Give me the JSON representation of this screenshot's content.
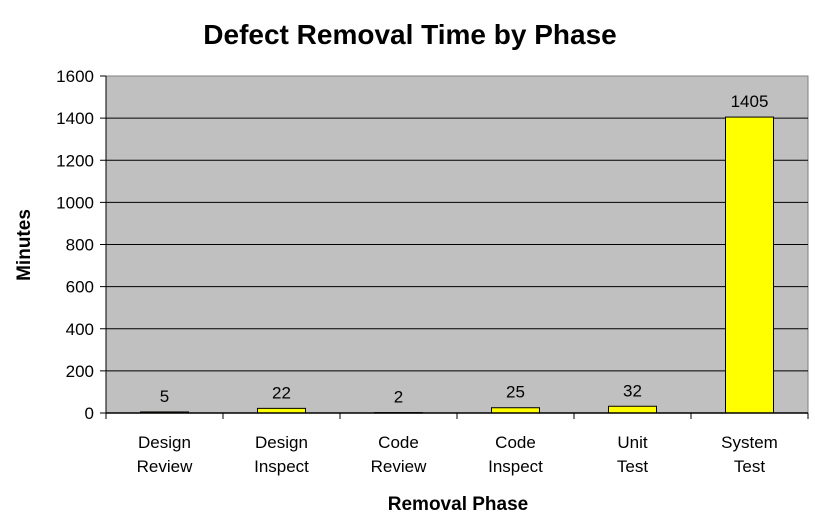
{
  "chart_data": {
    "type": "bar",
    "title": "Defect Removal Time by Phase",
    "xlabel": "Removal Phase",
    "ylabel": "Minutes",
    "categories": [
      [
        "Design",
        "Review"
      ],
      [
        "Design",
        "Inspect"
      ],
      [
        "Code",
        "Review"
      ],
      [
        "Code",
        "Inspect"
      ],
      [
        "Unit",
        "Test"
      ],
      [
        "System",
        "Test"
      ]
    ],
    "values": [
      5,
      22,
      2,
      25,
      32,
      1405
    ],
    "data_labels": [
      "5",
      "22",
      "2",
      "25",
      "32",
      "1405"
    ],
    "ylim": [
      0,
      1600
    ],
    "yticks": [
      0,
      200,
      400,
      600,
      800,
      1000,
      1200,
      1400,
      1600
    ],
    "grid": true,
    "legend": "none",
    "colors": {
      "bar_fill": "#ffff00",
      "bar_stroke": "#000000",
      "plot_background": "#c0c0c0",
      "gridline": "#000000"
    }
  }
}
